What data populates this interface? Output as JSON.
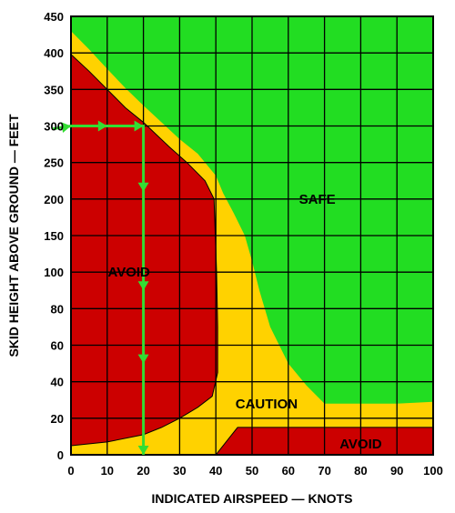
{
  "chart_data": {
    "type": "area",
    "title": "",
    "xlabel": "INDICATED AIRSPEED — KNOTS",
    "ylabel": "SKID HEIGHT ABOVE GROUND — FEET",
    "xlim": [
      0,
      100
    ],
    "ylim": [
      0,
      450
    ],
    "x_ticks": [
      "0",
      "10",
      "20",
      "30",
      "40",
      "50",
      "60",
      "70",
      "80",
      "90",
      "100"
    ],
    "y_ticks": [
      "0",
      "20",
      "40",
      "60",
      "80",
      "100",
      "150",
      "200",
      "250",
      "300",
      "350",
      "400",
      "450"
    ],
    "y_scale_note": "piecewise: 0-100 ft in 20 ft steps, 100-450 ft in 50 ft steps (equal spacing per tick)",
    "grid": true,
    "colors": {
      "safe": "#22dd22",
      "caution": "#ffd200",
      "avoid": "#cc0000",
      "arrow": "#33dd33",
      "grid": "#000000"
    },
    "regions": [
      {
        "name": "SAFE",
        "label": "SAFE",
        "color": "#22dd22",
        "label_at": [
          68,
          200
        ]
      },
      {
        "name": "CAUTION",
        "label": "CAUTION",
        "color": "#ffd200",
        "boundary_upper": [
          [
            0,
            430
          ],
          [
            5,
            405
          ],
          [
            10,
            378
          ],
          [
            15,
            352
          ],
          [
            20,
            328
          ],
          [
            25,
            305
          ],
          [
            30,
            282
          ],
          [
            35,
            262
          ],
          [
            40,
            232
          ],
          [
            42,
            208
          ],
          [
            45,
            180
          ],
          [
            48,
            150
          ],
          [
            50,
            115
          ],
          [
            52,
            90
          ],
          [
            55,
            70
          ],
          [
            60,
            50
          ],
          [
            65,
            38
          ],
          [
            70,
            28
          ],
          [
            80,
            28
          ],
          [
            90,
            28
          ],
          [
            100,
            29
          ]
        ],
        "label_at": [
          54,
          28
        ]
      },
      {
        "name": "AVOID_HIGH",
        "label": "AVOID",
        "color": "#cc0000",
        "boundary": [
          [
            0,
            5
          ],
          [
            10,
            7
          ],
          [
            20,
            11
          ],
          [
            25,
            15
          ],
          [
            30,
            20
          ],
          [
            35,
            26
          ],
          [
            39,
            32
          ],
          [
            40.5,
            45
          ],
          [
            40.5,
            70
          ],
          [
            40.2,
            100
          ],
          [
            39.5,
            200
          ],
          [
            37,
            225
          ],
          [
            32,
            250
          ],
          [
            27,
            272
          ],
          [
            20,
            305
          ],
          [
            15,
            325
          ],
          [
            10,
            350
          ],
          [
            5,
            375
          ],
          [
            0,
            398
          ]
        ],
        "label_at": [
          16,
          100
        ]
      },
      {
        "name": "AVOID_LOW",
        "label": "AVOID",
        "color": "#cc0000",
        "boundary": [
          [
            40,
            0
          ],
          [
            46,
            15
          ],
          [
            100,
            15
          ],
          [
            100,
            0
          ]
        ],
        "label_at": [
          80,
          6
        ]
      }
    ],
    "annotations": [
      {
        "type": "arrow-path",
        "description": "entry at 300 ft, horizontal to 20 kt, then vertical down to ground",
        "points": [
          [
            -5,
            296
          ],
          [
            0,
            300
          ],
          [
            10,
            300
          ],
          [
            20,
            300
          ],
          [
            20,
            210
          ],
          [
            20,
            90
          ],
          [
            20,
            50
          ],
          [
            20,
            0
          ]
        ],
        "arrowheads_at": [
          [
            0,
            300
          ],
          [
            10,
            300
          ],
          [
            20,
            300
          ],
          [
            20,
            210
          ],
          [
            20,
            90
          ],
          [
            20,
            50
          ],
          [
            20,
            0
          ]
        ]
      }
    ]
  }
}
